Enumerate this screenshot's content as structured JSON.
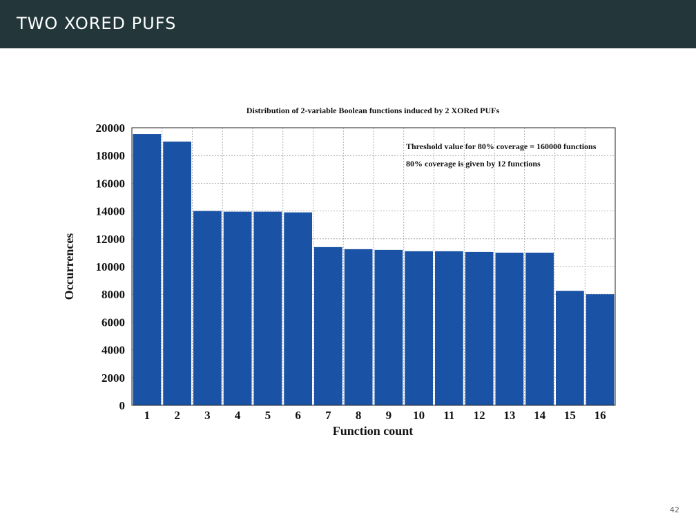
{
  "slide": {
    "title": "TWO XORED PUFS",
    "page_number": "42"
  },
  "colors": {
    "header_bg": "#23373b",
    "bar": "#1a52a6"
  },
  "chart_data": {
    "type": "bar",
    "title": "Distribution of 2-variable Boolean functions induced by 2 XORed PUFs",
    "xlabel": "Function count",
    "ylabel": "Occurrences",
    "categories": [
      "1",
      "2",
      "3",
      "4",
      "5",
      "6",
      "7",
      "8",
      "9",
      "10",
      "11",
      "12",
      "13",
      "14",
      "15",
      "16"
    ],
    "values": [
      19550,
      19000,
      14000,
      13950,
      13950,
      13900,
      11400,
      11250,
      11200,
      11100,
      11100,
      11050,
      11000,
      11000,
      8250,
      8000
    ],
    "ylim": [
      0,
      20000
    ],
    "yticks": [
      0,
      2000,
      4000,
      6000,
      8000,
      10000,
      12000,
      14000,
      16000,
      18000,
      20000
    ],
    "grid": true,
    "annotations": [
      "Threshold value for 80% coverage = 160000 functions",
      "80% coverage is given by 12 functions"
    ]
  }
}
